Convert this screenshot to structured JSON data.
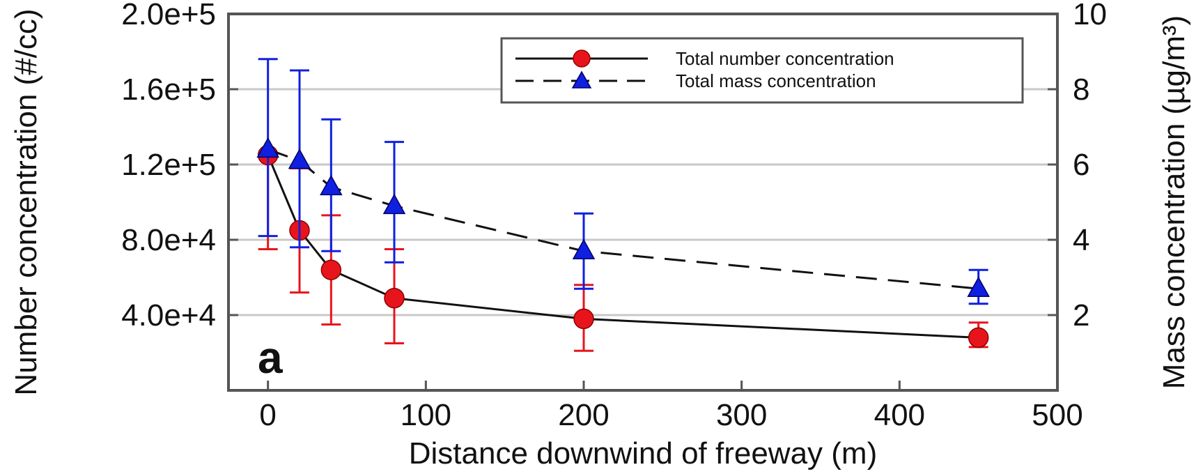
{
  "chart_data": {
    "type": "line",
    "panel_label": "a",
    "xlabel": "Distance downwind of freeway (m)",
    "ylabel_left": "Number concentration (#/cc)",
    "ylabel_right": "Mass concentration (µg/m³)",
    "xlim": [
      -25,
      500
    ],
    "ylim_left": [
      0,
      200000
    ],
    "ylim_right": [
      0,
      10
    ],
    "x_ticks": [
      0,
      100,
      200,
      300,
      400,
      500
    ],
    "x_tick_labels": [
      "0",
      "100",
      "200",
      "300",
      "400",
      "500"
    ],
    "y_left_ticks": [
      40000,
      80000,
      120000,
      160000,
      200000
    ],
    "y_left_tick_labels": [
      "4.0e+4",
      "8.0e+4",
      "1.2e+5",
      "1.6e+5",
      "2.0e+5"
    ],
    "y_right_ticks": [
      2,
      4,
      6,
      8,
      10
    ],
    "y_right_tick_labels": [
      "2",
      "4",
      "6",
      "8",
      "10"
    ],
    "grid": "horizontal",
    "legend_position": "top-right",
    "series": [
      {
        "name": "Total number concentration",
        "axis": "left",
        "color": "#e8141c",
        "line_color": "#111111",
        "line_style": "solid",
        "marker": "circle",
        "x": [
          0,
          20,
          40,
          80,
          200,
          450
        ],
        "y": [
          125000,
          85000,
          64000,
          49000,
          38000,
          28000
        ],
        "err_low": [
          75000,
          52000,
          35000,
          25000,
          21000,
          23000
        ],
        "err_high": [
          125000,
          118000,
          93000,
          75000,
          56000,
          36000
        ]
      },
      {
        "name": "Total mass concentration",
        "axis": "right",
        "color": "#1020e0",
        "line_color": "#111111",
        "line_style": "dashed",
        "marker": "triangle",
        "x": [
          0,
          20,
          40,
          80,
          200,
          450
        ],
        "y": [
          6.4,
          6.1,
          5.4,
          4.9,
          3.7,
          2.7
        ],
        "err_low": [
          4.1,
          3.8,
          3.7,
          3.4,
          2.7,
          2.3
        ],
        "err_high": [
          8.8,
          8.5,
          7.2,
          6.6,
          4.7,
          3.2
        ]
      }
    ]
  }
}
